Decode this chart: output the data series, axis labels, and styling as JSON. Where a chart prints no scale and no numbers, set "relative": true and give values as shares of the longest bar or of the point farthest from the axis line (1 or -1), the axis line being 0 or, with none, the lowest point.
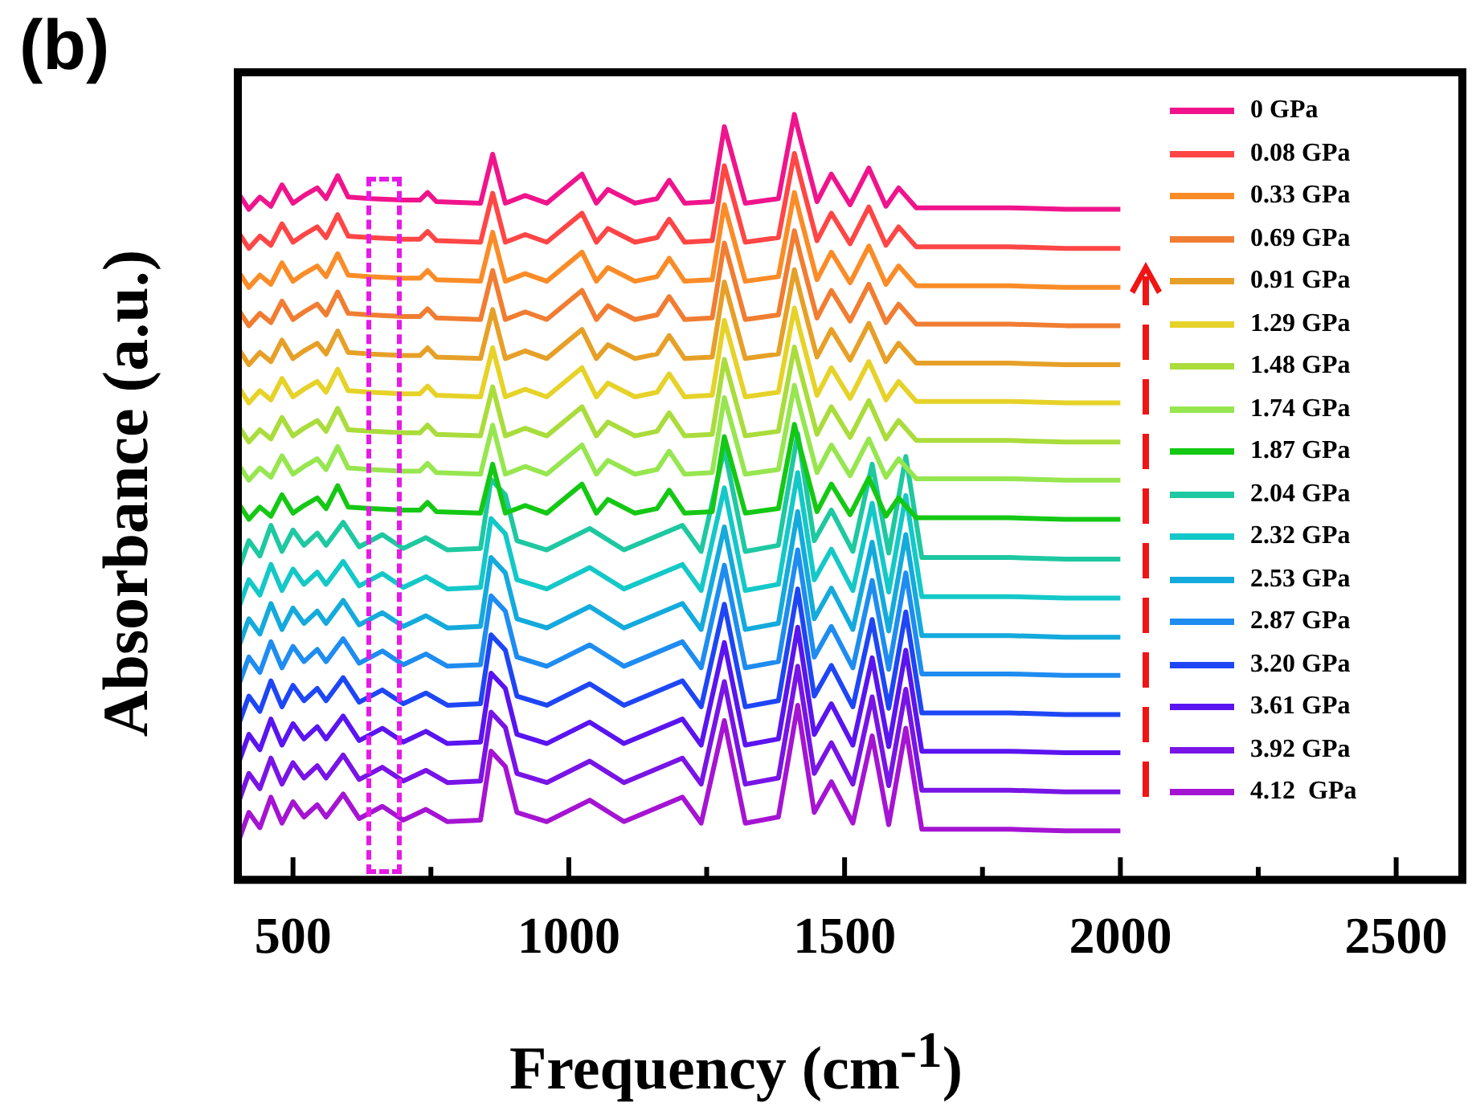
{
  "chart_data": {
    "type": "line",
    "xlabel": "Frequency (cm$^{-1}$)",
    "ylabel": "Absorbance (a.u.)",
    "relative": true,
    "xlim": [
      400,
      2620
    ],
    "xticks": [
      500,
      {
        "value": 750,
        "label": null
      },
      1000,
      {
        "value": 1250,
        "label": null
      },
      1500,
      {
        "value": 1750,
        "label": null
      },
      2000,
      {
        "value": 2250,
        "label": null
      },
      2500
    ],
    "legend": "top right",
    "annotations": [
      "(b)"
    ],
    "series": [
      {
        "name": "0 GPa",
        "color": "#f0148c",
        "x": [
          400,
          420,
          440,
          460,
          480,
          500,
          520,
          544,
          560,
          581,
          600,
          640,
          700,
          730,
          744,
          760,
          840,
          862,
          885,
          921,
          960,
          1024,
          1050,
          1071,
          1120,
          1160,
          1182,
          1210,
          1260,
          1282,
          1320,
          1380,
          1409,
          1420,
          1450,
          1476,
          1510,
          1544,
          1575,
          1598,
          1630,
          1700,
          1800,
          1900,
          2000
        ],
        "values": [
          0.898,
          0.876,
          0.892,
          0.88,
          0.908,
          0.884,
          0.894,
          0.904,
          0.89,
          0.92,
          0.892,
          0.89,
          0.888,
          0.888,
          0.898,
          0.886,
          0.884,
          0.948,
          0.884,
          0.894,
          0.884,
          0.922,
          0.884,
          0.902,
          0.884,
          0.89,
          0.914,
          0.884,
          0.886,
          0.984,
          0.884,
          0.89,
          1.0,
          0.968,
          0.886,
          0.922,
          0.882,
          0.93,
          0.88,
          0.904,
          0.878,
          0.878,
          0.878,
          0.876,
          0.876
        ]
      },
      {
        "name": "0.08 GPa",
        "color": "#ff4646",
        "x": [
          400,
          420,
          440,
          460,
          480,
          500,
          520,
          544,
          560,
          581,
          600,
          640,
          700,
          730,
          744,
          760,
          840,
          862,
          885,
          921,
          960,
          1024,
          1050,
          1071,
          1120,
          1160,
          1182,
          1210,
          1260,
          1282,
          1320,
          1380,
          1409,
          1420,
          1450,
          1476,
          1510,
          1544,
          1575,
          1598,
          1630,
          1700,
          1800,
          1900,
          2000
        ],
        "values": [
          0.847,
          0.825,
          0.841,
          0.829,
          0.857,
          0.833,
          0.843,
          0.853,
          0.839,
          0.869,
          0.841,
          0.839,
          0.837,
          0.837,
          0.847,
          0.835,
          0.833,
          0.897,
          0.833,
          0.843,
          0.833,
          0.871,
          0.833,
          0.851,
          0.833,
          0.839,
          0.863,
          0.833,
          0.835,
          0.933,
          0.833,
          0.839,
          0.949,
          0.917,
          0.835,
          0.871,
          0.831,
          0.879,
          0.829,
          0.853,
          0.827,
          0.827,
          0.827,
          0.825,
          0.825
        ]
      },
      {
        "name": "0.33 GPa",
        "color": "#fa8c28",
        "x": [
          400,
          420,
          440,
          460,
          480,
          500,
          520,
          544,
          560,
          581,
          600,
          640,
          700,
          730,
          744,
          760,
          840,
          862,
          885,
          921,
          960,
          1024,
          1050,
          1071,
          1120,
          1160,
          1182,
          1210,
          1260,
          1282,
          1320,
          1380,
          1409,
          1420,
          1450,
          1476,
          1510,
          1544,
          1575,
          1598,
          1630,
          1700,
          1800,
          1900,
          2000
        ],
        "values": [
          0.796,
          0.774,
          0.79,
          0.778,
          0.806,
          0.782,
          0.792,
          0.802,
          0.788,
          0.818,
          0.79,
          0.788,
          0.786,
          0.786,
          0.796,
          0.784,
          0.782,
          0.846,
          0.782,
          0.792,
          0.782,
          0.82,
          0.782,
          0.8,
          0.782,
          0.788,
          0.812,
          0.782,
          0.784,
          0.882,
          0.782,
          0.788,
          0.898,
          0.866,
          0.784,
          0.82,
          0.78,
          0.828,
          0.778,
          0.802,
          0.776,
          0.776,
          0.776,
          0.774,
          0.774
        ]
      },
      {
        "name": "0.69 GPa",
        "color": "#f07d32",
        "x": [
          400,
          420,
          440,
          460,
          480,
          500,
          520,
          544,
          560,
          581,
          600,
          640,
          700,
          730,
          744,
          760,
          840,
          862,
          885,
          921,
          960,
          1024,
          1050,
          1071,
          1120,
          1160,
          1182,
          1210,
          1260,
          1282,
          1320,
          1380,
          1409,
          1420,
          1450,
          1476,
          1510,
          1544,
          1575,
          1598,
          1630,
          1700,
          1800,
          1900,
          2000
        ],
        "values": [
          0.746,
          0.724,
          0.74,
          0.728,
          0.756,
          0.732,
          0.742,
          0.752,
          0.738,
          0.768,
          0.74,
          0.738,
          0.736,
          0.736,
          0.746,
          0.734,
          0.732,
          0.796,
          0.732,
          0.742,
          0.732,
          0.77,
          0.732,
          0.75,
          0.732,
          0.738,
          0.762,
          0.732,
          0.734,
          0.832,
          0.732,
          0.738,
          0.848,
          0.816,
          0.734,
          0.77,
          0.73,
          0.778,
          0.728,
          0.752,
          0.726,
          0.726,
          0.726,
          0.724,
          0.724
        ]
      },
      {
        "name": "0.91 GPa",
        "color": "#e6a028",
        "x": [
          400,
          420,
          440,
          460,
          480,
          500,
          520,
          544,
          560,
          581,
          600,
          640,
          700,
          730,
          744,
          760,
          840,
          862,
          885,
          921,
          960,
          1024,
          1050,
          1071,
          1120,
          1160,
          1182,
          1210,
          1260,
          1282,
          1320,
          1380,
          1409,
          1420,
          1450,
          1476,
          1510,
          1544,
          1575,
          1598,
          1630,
          1700,
          1800,
          1900,
          2000
        ],
        "values": [
          0.695,
          0.673,
          0.689,
          0.677,
          0.705,
          0.681,
          0.691,
          0.701,
          0.687,
          0.717,
          0.689,
          0.687,
          0.685,
          0.685,
          0.695,
          0.683,
          0.681,
          0.745,
          0.681,
          0.691,
          0.681,
          0.719,
          0.681,
          0.699,
          0.681,
          0.687,
          0.711,
          0.681,
          0.683,
          0.781,
          0.681,
          0.687,
          0.797,
          0.765,
          0.683,
          0.719,
          0.679,
          0.727,
          0.677,
          0.701,
          0.675,
          0.675,
          0.675,
          0.673,
          0.673
        ]
      },
      {
        "name": "1.29 GPa",
        "color": "#e6d228",
        "x": [
          400,
          420,
          440,
          460,
          480,
          500,
          520,
          544,
          560,
          581,
          600,
          640,
          700,
          730,
          744,
          760,
          840,
          862,
          885,
          921,
          960,
          1024,
          1050,
          1071,
          1120,
          1160,
          1182,
          1210,
          1260,
          1282,
          1320,
          1380,
          1409,
          1420,
          1450,
          1476,
          1510,
          1544,
          1575,
          1598,
          1630,
          1700,
          1800,
          1900,
          2000
        ],
        "values": [
          0.645,
          0.623,
          0.639,
          0.627,
          0.655,
          0.631,
          0.641,
          0.651,
          0.637,
          0.667,
          0.639,
          0.637,
          0.635,
          0.635,
          0.645,
          0.633,
          0.631,
          0.695,
          0.631,
          0.641,
          0.631,
          0.669,
          0.631,
          0.649,
          0.631,
          0.637,
          0.661,
          0.631,
          0.633,
          0.731,
          0.631,
          0.637,
          0.747,
          0.715,
          0.633,
          0.669,
          0.629,
          0.677,
          0.627,
          0.651,
          0.625,
          0.625,
          0.625,
          0.623,
          0.623
        ]
      },
      {
        "name": "1.48 GPa",
        "color": "#aadc3c",
        "x": [
          400,
          420,
          440,
          460,
          480,
          500,
          520,
          544,
          560,
          581,
          600,
          640,
          700,
          730,
          744,
          760,
          840,
          862,
          885,
          921,
          960,
          1024,
          1050,
          1071,
          1120,
          1160,
          1182,
          1210,
          1260,
          1282,
          1320,
          1380,
          1409,
          1420,
          1450,
          1476,
          1510,
          1544,
          1575,
          1598,
          1630,
          1700,
          1800,
          1900,
          2000
        ],
        "values": [
          0.594,
          0.572,
          0.588,
          0.576,
          0.604,
          0.58,
          0.59,
          0.6,
          0.586,
          0.616,
          0.588,
          0.586,
          0.584,
          0.584,
          0.594,
          0.582,
          0.58,
          0.644,
          0.58,
          0.59,
          0.58,
          0.618,
          0.58,
          0.598,
          0.58,
          0.586,
          0.61,
          0.58,
          0.582,
          0.68,
          0.58,
          0.586,
          0.696,
          0.664,
          0.582,
          0.618,
          0.578,
          0.626,
          0.576,
          0.6,
          0.574,
          0.574,
          0.574,
          0.572,
          0.572
        ]
      },
      {
        "name": "1.74 GPa",
        "color": "#96e650",
        "x": [
          400,
          420,
          440,
          460,
          480,
          500,
          520,
          544,
          560,
          581,
          600,
          640,
          700,
          730,
          744,
          760,
          840,
          862,
          885,
          921,
          960,
          1024,
          1050,
          1071,
          1120,
          1160,
          1182,
          1210,
          1260,
          1282,
          1320,
          1380,
          1409,
          1420,
          1450,
          1476,
          1510,
          1544,
          1575,
          1598,
          1630,
          1700,
          1800,
          1900,
          2000
        ],
        "values": [
          0.544,
          0.522,
          0.538,
          0.526,
          0.554,
          0.53,
          0.54,
          0.55,
          0.536,
          0.566,
          0.538,
          0.536,
          0.534,
          0.534,
          0.544,
          0.532,
          0.53,
          0.594,
          0.53,
          0.54,
          0.53,
          0.568,
          0.53,
          0.548,
          0.53,
          0.536,
          0.56,
          0.53,
          0.532,
          0.63,
          0.53,
          0.536,
          0.646,
          0.614,
          0.532,
          0.568,
          0.528,
          0.576,
          0.526,
          0.55,
          0.524,
          0.524,
          0.524,
          0.522,
          0.522
        ]
      },
      {
        "name": "1.87 GPa",
        "color": "#14c814",
        "x": [
          400,
          420,
          440,
          460,
          480,
          500,
          520,
          544,
          560,
          581,
          600,
          640,
          700,
          730,
          744,
          760,
          840,
          862,
          885,
          921,
          960,
          1024,
          1050,
          1071,
          1120,
          1160,
          1182,
          1210,
          1260,
          1282,
          1320,
          1380,
          1409,
          1420,
          1450,
          1476,
          1510,
          1544,
          1575,
          1598,
          1630,
          1700,
          1800,
          1900,
          2000
        ],
        "values": [
          0.493,
          0.471,
          0.487,
          0.475,
          0.503,
          0.479,
          0.489,
          0.499,
          0.485,
          0.515,
          0.487,
          0.485,
          0.483,
          0.483,
          0.493,
          0.481,
          0.479,
          0.543,
          0.479,
          0.489,
          0.479,
          0.517,
          0.479,
          0.497,
          0.479,
          0.485,
          0.509,
          0.479,
          0.481,
          0.579,
          0.479,
          0.485,
          0.595,
          0.563,
          0.481,
          0.517,
          0.477,
          0.525,
          0.475,
          0.499,
          0.473,
          0.473,
          0.473,
          0.471,
          0.471
        ]
      },
      {
        "name": "2.04 GPa",
        "color": "#1ec8a0",
        "x": [
          400,
          420,
          440,
          460,
          480,
          500,
          520,
          544,
          560,
          591,
          620,
          662,
          700,
          741,
          780,
          840,
          859,
          885,
          906,
          960,
          1038,
          1100,
          1206,
          1240,
          1282,
          1320,
          1380,
          1415,
          1445,
          1476,
          1515,
          1550,
          1580,
          1611,
          1640,
          1700,
          1800,
          1900,
          2000
        ],
        "values": [
          0.403,
          0.443,
          0.423,
          0.463,
          0.429,
          0.457,
          0.437,
          0.453,
          0.437,
          0.467,
          0.435,
          0.451,
          0.433,
          0.447,
          0.431,
          0.433,
          0.523,
          0.503,
          0.443,
          0.431,
          0.459,
          0.431,
          0.463,
          0.429,
          0.563,
          0.429,
          0.437,
          0.583,
          0.443,
          0.483,
          0.429,
          0.543,
          0.427,
          0.553,
          0.421,
          0.421,
          0.421,
          0.419,
          0.419
        ]
      },
      {
        "name": "2.32 GPa",
        "color": "#14c8c8",
        "x": [
          400,
          420,
          440,
          460,
          480,
          500,
          520,
          544,
          560,
          591,
          620,
          662,
          700,
          741,
          780,
          840,
          859,
          885,
          906,
          960,
          1038,
          1100,
          1206,
          1240,
          1282,
          1320,
          1380,
          1415,
          1445,
          1476,
          1515,
          1550,
          1580,
          1611,
          1640,
          1700,
          1800,
          1900,
          2000
        ],
        "values": [
          0.352,
          0.392,
          0.372,
          0.412,
          0.378,
          0.406,
          0.386,
          0.402,
          0.386,
          0.416,
          0.384,
          0.4,
          0.382,
          0.396,
          0.38,
          0.382,
          0.472,
          0.452,
          0.392,
          0.38,
          0.408,
          0.38,
          0.412,
          0.378,
          0.512,
          0.378,
          0.386,
          0.532,
          0.392,
          0.432,
          0.378,
          0.492,
          0.376,
          0.502,
          0.37,
          0.37,
          0.37,
          0.368,
          0.368
        ]
      },
      {
        "name": "2.53 GPa",
        "color": "#14aadc",
        "x": [
          400,
          420,
          440,
          460,
          480,
          500,
          520,
          544,
          560,
          591,
          620,
          662,
          700,
          741,
          780,
          840,
          859,
          885,
          906,
          960,
          1038,
          1100,
          1206,
          1240,
          1282,
          1320,
          1380,
          1415,
          1445,
          1476,
          1515,
          1550,
          1580,
          1611,
          1640,
          1700,
          1800,
          1900,
          2000
        ],
        "values": [
          0.301,
          0.341,
          0.321,
          0.361,
          0.327,
          0.355,
          0.335,
          0.351,
          0.335,
          0.365,
          0.333,
          0.349,
          0.331,
          0.345,
          0.329,
          0.331,
          0.421,
          0.401,
          0.341,
          0.329,
          0.357,
          0.329,
          0.361,
          0.327,
          0.461,
          0.327,
          0.335,
          0.481,
          0.341,
          0.381,
          0.327,
          0.441,
          0.325,
          0.451,
          0.319,
          0.319,
          0.319,
          0.317,
          0.317
        ]
      },
      {
        "name": "2.87 GPa",
        "color": "#1e8cf0",
        "x": [
          400,
          420,
          440,
          460,
          480,
          500,
          520,
          544,
          560,
          591,
          620,
          662,
          700,
          741,
          780,
          840,
          859,
          885,
          906,
          960,
          1038,
          1100,
          1206,
          1240,
          1282,
          1320,
          1380,
          1415,
          1445,
          1476,
          1515,
          1550,
          1580,
          1611,
          1640,
          1700,
          1800,
          1900,
          2000
        ],
        "values": [
          0.251,
          0.291,
          0.271,
          0.311,
          0.277,
          0.305,
          0.285,
          0.301,
          0.285,
          0.315,
          0.283,
          0.299,
          0.281,
          0.295,
          0.279,
          0.281,
          0.371,
          0.351,
          0.291,
          0.279,
          0.307,
          0.279,
          0.311,
          0.277,
          0.411,
          0.277,
          0.285,
          0.431,
          0.291,
          0.331,
          0.277,
          0.391,
          0.275,
          0.401,
          0.269,
          0.269,
          0.269,
          0.267,
          0.267
        ]
      },
      {
        "name": "3.20 GPa",
        "color": "#1e46f5",
        "x": [
          400,
          420,
          440,
          460,
          480,
          500,
          520,
          544,
          560,
          591,
          620,
          662,
          700,
          741,
          780,
          840,
          859,
          885,
          906,
          960,
          1038,
          1100,
          1206,
          1240,
          1282,
          1320,
          1380,
          1415,
          1445,
          1476,
          1515,
          1550,
          1580,
          1611,
          1640,
          1700,
          1800,
          1900,
          2000
        ],
        "values": [
          0.2,
          0.24,
          0.22,
          0.26,
          0.226,
          0.254,
          0.234,
          0.25,
          0.234,
          0.264,
          0.232,
          0.248,
          0.23,
          0.244,
          0.228,
          0.23,
          0.32,
          0.3,
          0.24,
          0.228,
          0.256,
          0.228,
          0.26,
          0.226,
          0.36,
          0.226,
          0.234,
          0.38,
          0.24,
          0.28,
          0.226,
          0.34,
          0.224,
          0.35,
          0.218,
          0.218,
          0.218,
          0.216,
          0.216
        ]
      },
      {
        "name": "3.61 GPa",
        "color": "#5a14f0",
        "x": [
          400,
          420,
          440,
          460,
          480,
          500,
          520,
          544,
          560,
          591,
          620,
          662,
          700,
          741,
          780,
          840,
          859,
          885,
          906,
          960,
          1038,
          1100,
          1206,
          1240,
          1282,
          1320,
          1380,
          1415,
          1445,
          1476,
          1515,
          1550,
          1580,
          1611,
          1640,
          1700,
          1800,
          1900,
          2000
        ],
        "values": [
          0.15,
          0.19,
          0.17,
          0.21,
          0.176,
          0.204,
          0.184,
          0.2,
          0.184,
          0.214,
          0.182,
          0.198,
          0.18,
          0.194,
          0.178,
          0.18,
          0.27,
          0.25,
          0.19,
          0.178,
          0.206,
          0.178,
          0.21,
          0.176,
          0.31,
          0.176,
          0.184,
          0.33,
          0.19,
          0.23,
          0.176,
          0.29,
          0.174,
          0.3,
          0.168,
          0.168,
          0.168,
          0.166,
          0.166
        ]
      },
      {
        "name": "3.92 GPa",
        "color": "#7814e6",
        "x": [
          400,
          420,
          440,
          460,
          480,
          500,
          520,
          544,
          560,
          591,
          620,
          662,
          700,
          741,
          780,
          840,
          859,
          885,
          906,
          960,
          1038,
          1100,
          1206,
          1240,
          1282,
          1320,
          1380,
          1415,
          1445,
          1476,
          1515,
          1550,
          1580,
          1611,
          1640,
          1700,
          1800,
          1900,
          2000
        ],
        "values": [
          0.099,
          0.139,
          0.119,
          0.159,
          0.125,
          0.153,
          0.133,
          0.149,
          0.133,
          0.163,
          0.131,
          0.147,
          0.129,
          0.143,
          0.127,
          0.129,
          0.219,
          0.199,
          0.139,
          0.127,
          0.155,
          0.127,
          0.159,
          0.125,
          0.259,
          0.125,
          0.133,
          0.279,
          0.139,
          0.179,
          0.125,
          0.239,
          0.123,
          0.249,
          0.117,
          0.117,
          0.117,
          0.115,
          0.115
        ]
      },
      {
        "name": "4.12  GPa",
        "color": "#a514d2",
        "x": [
          400,
          420,
          440,
          460,
          480,
          500,
          520,
          544,
          560,
          591,
          620,
          662,
          700,
          741,
          780,
          840,
          859,
          885,
          906,
          960,
          1038,
          1100,
          1206,
          1240,
          1282,
          1320,
          1380,
          1415,
          1445,
          1476,
          1515,
          1550,
          1580,
          1611,
          1640,
          1700,
          1800,
          1900,
          2000
        ],
        "values": [
          0.048,
          0.088,
          0.068,
          0.108,
          0.074,
          0.102,
          0.082,
          0.098,
          0.082,
          0.112,
          0.08,
          0.096,
          0.078,
          0.092,
          0.076,
          0.078,
          0.168,
          0.148,
          0.088,
          0.076,
          0.104,
          0.076,
          0.108,
          0.074,
          0.208,
          0.074,
          0.082,
          0.228,
          0.088,
          0.128,
          0.074,
          0.188,
          0.072,
          0.198,
          0.066,
          0.066,
          0.066,
          0.064,
          0.064
        ]
      }
    ]
  }
}
